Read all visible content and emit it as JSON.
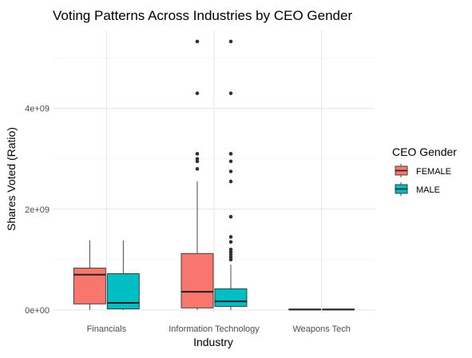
{
  "chart_data": {
    "type": "boxplot",
    "title": "Voting Patterns Across Industries by CEO Gender",
    "xlabel": "Industry",
    "ylabel": "Shares Voted (Ratio)",
    "categories": [
      "Financials",
      "Information Technology",
      "Weapons Tech"
    ],
    "y_ticks": [
      0,
      2000000000,
      4000000000
    ],
    "y_tick_labels": [
      "0e+00",
      "2e+09",
      "4e+09"
    ],
    "ylim": [
      -50000000,
      5550000000
    ],
    "grid": true,
    "legend": {
      "title": "CEO Gender",
      "position": "right",
      "entries": [
        {
          "label": "FEMALE",
          "color": "#F8766D"
        },
        {
          "label": "MALE",
          "color": "#00BFC4"
        }
      ]
    },
    "series": [
      {
        "name": "FEMALE",
        "color": "#F8766D",
        "boxes": [
          {
            "category": "Financials",
            "min": 0,
            "q1": 120000000,
            "median": 700000000,
            "q3": 830000000,
            "max": 1380000000,
            "outliers": []
          },
          {
            "category": "Information Technology",
            "min": 0,
            "q1": 40000000,
            "median": 360000000,
            "q3": 1120000000,
            "max": 2550000000,
            "outliers": [
              2800000000,
              2950000000,
              3000000000,
              3100000000,
              4300000000,
              5330000000
            ]
          },
          {
            "category": "Weapons Tech",
            "min": 0,
            "q1": 0,
            "median": 10000000,
            "q3": 15000000,
            "max": 20000000,
            "outliers": []
          }
        ]
      },
      {
        "name": "MALE",
        "color": "#00BFC4",
        "boxes": [
          {
            "category": "Financials",
            "min": 0,
            "q1": 20000000,
            "median": 140000000,
            "q3": 720000000,
            "max": 1380000000,
            "outliers": []
          },
          {
            "category": "Information Technology",
            "min": 0,
            "q1": 70000000,
            "median": 170000000,
            "q3": 420000000,
            "max": 900000000,
            "outliers": [
              1000000000,
              1050000000,
              1100000000,
              1150000000,
              1200000000,
              1350000000,
              1450000000,
              1850000000,
              2550000000,
              2750000000,
              2950000000,
              3100000000,
              4300000000,
              5330000000
            ]
          },
          {
            "category": "Weapons Tech",
            "min": 0,
            "q1": 0,
            "median": 10000000,
            "q3": 15000000,
            "max": 20000000,
            "outliers": []
          }
        ]
      }
    ]
  }
}
